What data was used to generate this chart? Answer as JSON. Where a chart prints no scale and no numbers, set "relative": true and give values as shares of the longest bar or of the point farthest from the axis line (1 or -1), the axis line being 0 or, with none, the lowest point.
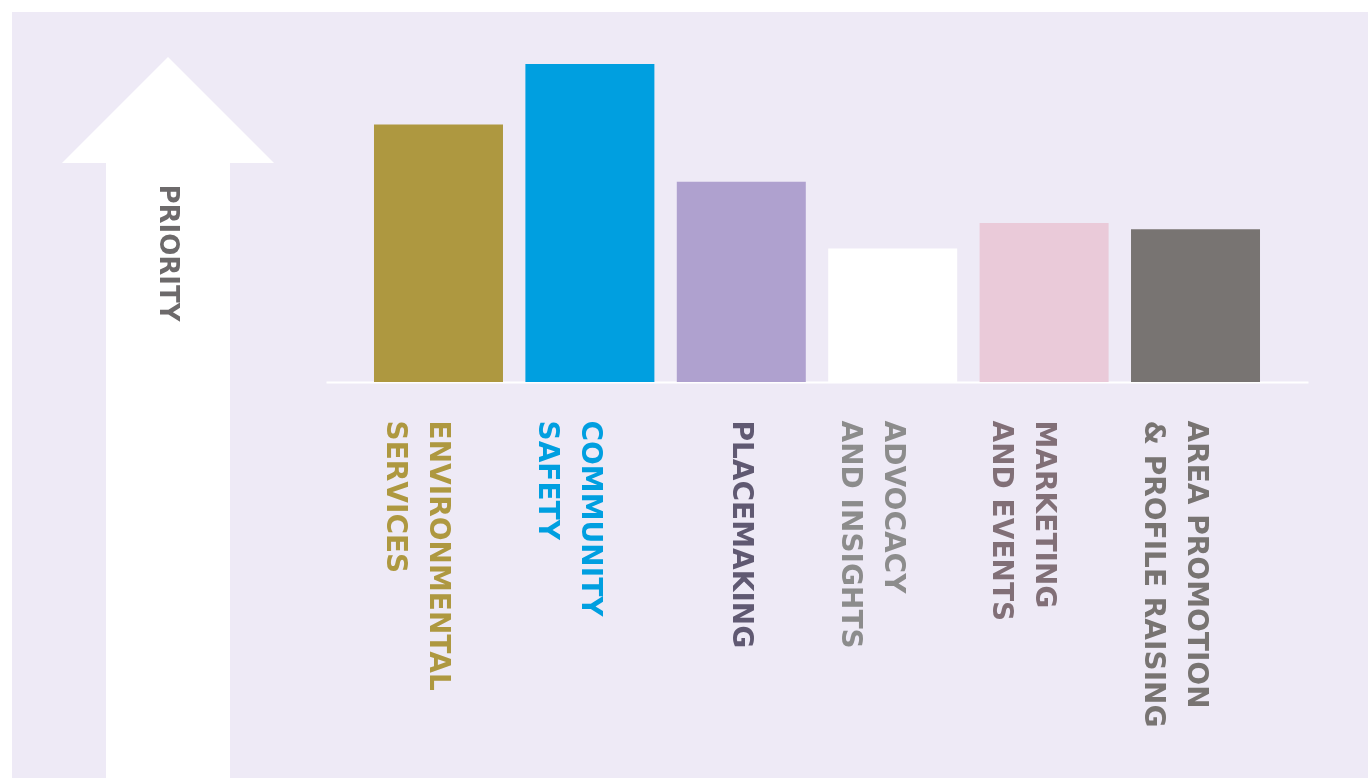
{
  "chart_data": {
    "type": "bar",
    "relative": true,
    "annotations": [
      "PRIORITY"
    ],
    "categories": [
      "ENVIRONMENTAL SERVICES",
      "COMMUNITY SAFETY",
      "PLACEMAKING",
      "ADVOCACY AND INSIGHTS",
      "MARKETING AND EVENTS",
      "AREA PROMOTION & PROFILE RAISING"
    ],
    "values": [
      0.81,
      1,
      0.63,
      0.42,
      0.5,
      0.48
    ],
    "colors": [
      "#ae9840",
      "#009fe0",
      "#afa1cf",
      "#ffffff",
      "#eacad9",
      "#787472"
    ],
    "grid": false,
    "legend": false
  }
}
